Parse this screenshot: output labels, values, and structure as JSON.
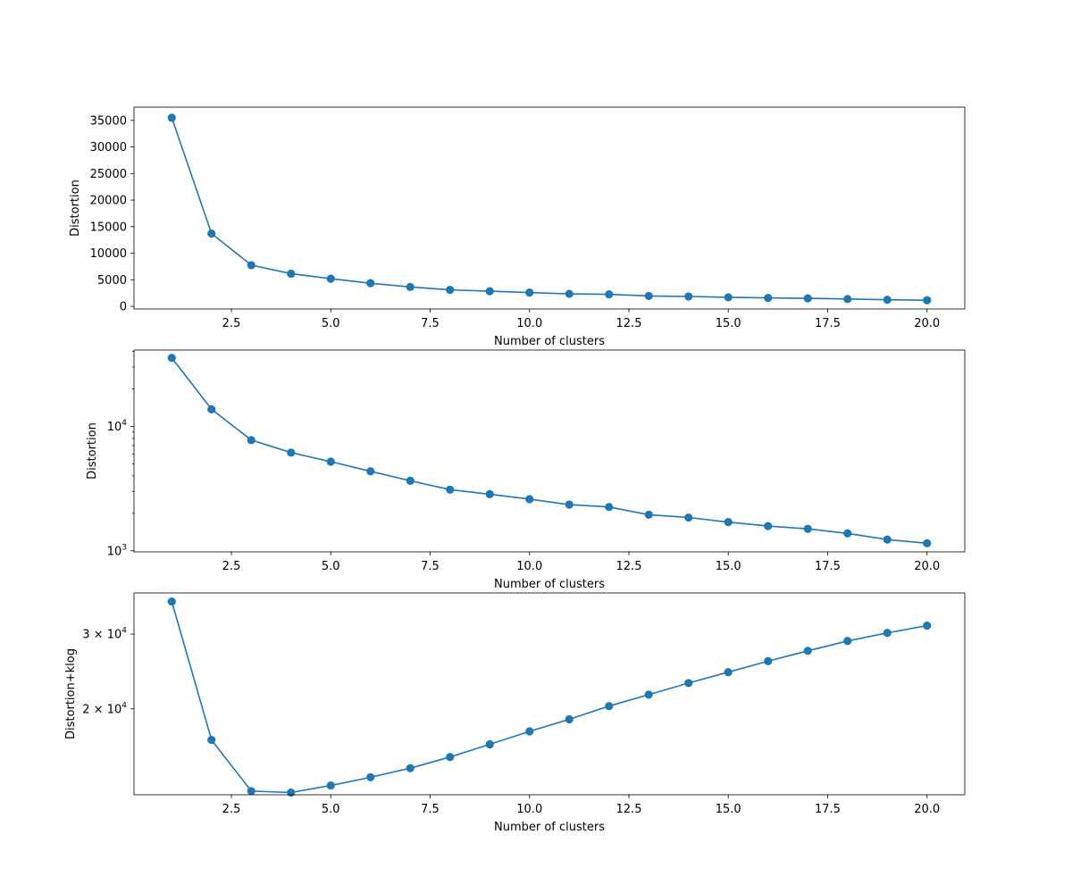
{
  "chart_data": [
    {
      "type": "line",
      "yscale": "linear",
      "title": "",
      "xlabel": "Number of clusters",
      "ylabel": "Distortion",
      "xlim": [
        0.05,
        20.95
      ],
      "ylim": [
        -500,
        37500
      ],
      "x_ticks": [
        2.5,
        5.0,
        7.5,
        10.0,
        12.5,
        15.0,
        17.5,
        20.0
      ],
      "x_tick_labels": [
        "2.5",
        "5.0",
        "7.5",
        "10.0",
        "12.5",
        "15.0",
        "17.5",
        "20.0"
      ],
      "y_ticks": [
        0,
        5000,
        10000,
        15000,
        20000,
        25000,
        30000,
        35000
      ],
      "y_tick_labels": [
        "0",
        "5000",
        "10000",
        "15000",
        "20000",
        "25000",
        "30000",
        "35000"
      ],
      "series": [
        {
          "name": "distortion",
          "color": "#1f77b4",
          "x": [
            1,
            2,
            3,
            4,
            5,
            6,
            7,
            8,
            9,
            10,
            11,
            12,
            13,
            14,
            15,
            16,
            17,
            18,
            19,
            20
          ],
          "values": [
            35500,
            13700,
            7750,
            6150,
            5200,
            4350,
            3650,
            3100,
            2850,
            2600,
            2350,
            2250,
            1950,
            1850,
            1700,
            1580,
            1500,
            1380,
            1230,
            1150
          ]
        }
      ]
    },
    {
      "type": "line",
      "yscale": "log",
      "title": "",
      "xlabel": "Number of clusters",
      "ylabel": "Distortion",
      "xlim": [
        0.05,
        20.95
      ],
      "ylim": [
        980,
        41000
      ],
      "x_ticks": [
        2.5,
        5.0,
        7.5,
        10.0,
        12.5,
        15.0,
        17.5,
        20.0
      ],
      "x_tick_labels": [
        "2.5",
        "5.0",
        "7.5",
        "10.0",
        "12.5",
        "15.0",
        "17.5",
        "20.0"
      ],
      "y_major_ticks": [
        1000,
        10000
      ],
      "y_major_tick_labels": [
        {
          "base": "10",
          "exp": "3"
        },
        {
          "base": "10",
          "exp": "4"
        }
      ],
      "series": [
        {
          "name": "distortion",
          "color": "#1f77b4",
          "x": [
            1,
            2,
            3,
            4,
            5,
            6,
            7,
            8,
            9,
            10,
            11,
            12,
            13,
            14,
            15,
            16,
            17,
            18,
            19,
            20
          ],
          "values": [
            35500,
            13700,
            7750,
            6150,
            5200,
            4350,
            3650,
            3100,
            2850,
            2600,
            2350,
            2250,
            1950,
            1850,
            1700,
            1580,
            1500,
            1380,
            1230,
            1150
          ]
        }
      ]
    },
    {
      "type": "line",
      "yscale": "log",
      "title": "",
      "xlabel": "Number of clusters",
      "ylabel": "Distortion+klog",
      "xlim": [
        0.05,
        20.95
      ],
      "ylim": [
        12550,
        37500
      ],
      "x_ticks": [
        2.5,
        5.0,
        7.5,
        10.0,
        12.5,
        15.0,
        17.5,
        20.0
      ],
      "x_tick_labels": [
        "2.5",
        "5.0",
        "7.5",
        "10.0",
        "12.5",
        "15.0",
        "17.5",
        "20.0"
      ],
      "y_major_ticks": [
        20000,
        30000
      ],
      "y_major_tick_labels": [
        {
          "base": "2 × 10",
          "exp": "4"
        },
        {
          "base": "3 × 10",
          "exp": "4"
        }
      ],
      "series": [
        {
          "name": "distortion+klog",
          "color": "#1f77b4",
          "x": [
            1,
            2,
            3,
            4,
            5,
            6,
            7,
            8,
            9,
            10,
            11,
            12,
            13,
            14,
            15,
            16,
            17,
            18,
            19,
            20
          ],
          "values": [
            35800,
            16900,
            12800,
            12700,
            13200,
            13800,
            14500,
            15400,
            16500,
            17700,
            18900,
            20300,
            21600,
            23000,
            24400,
            25900,
            27400,
            28900,
            30200,
            31400
          ]
        }
      ]
    }
  ]
}
